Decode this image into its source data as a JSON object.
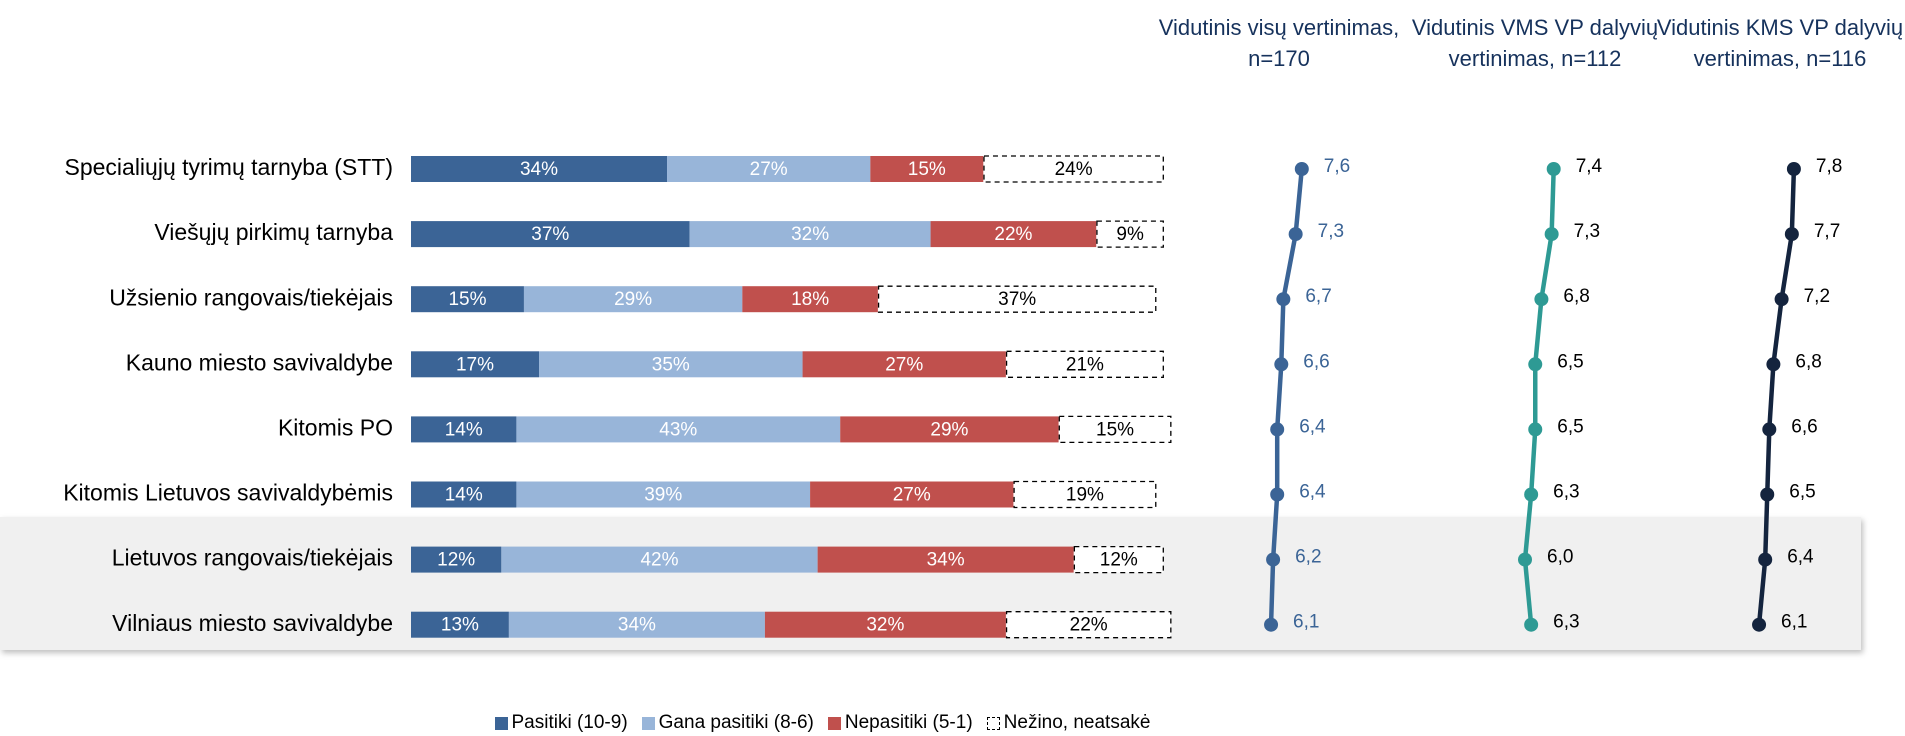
{
  "chart_data": [
    {
      "type": "bar",
      "orientation": "horizontal",
      "stacked": true,
      "xlim": [
        0,
        100
      ],
      "legend": "bottom",
      "categories": [
        "Specialiųjų tyrimų tarnyba (STT)",
        "Viešųjų pirkimų tarnyba",
        "Užsienio rangovais/tiekėjais",
        "Kauno miesto savivaldybe",
        "Kitomis PO",
        "Kitomis Lietuvos savivaldybėmis",
        "Lietuvos rangovais/tiekėjais",
        "Vilniaus miesto savivaldybe"
      ],
      "series": [
        {
          "name": "Pasitiki (10-9)",
          "color": "#3b6496",
          "values": [
            34,
            37,
            15,
            17,
            14,
            14,
            12,
            13
          ],
          "value_labels": [
            "34%",
            "37%",
            "15%",
            "17%",
            "14%",
            "14%",
            "12%",
            "13%"
          ]
        },
        {
          "name": "Gana pasitiki (8-6)",
          "color": "#98b5d9",
          "values": [
            27,
            32,
            29,
            35,
            43,
            39,
            42,
            34
          ],
          "value_labels": [
            "27%",
            "32%",
            "29%",
            "35%",
            "43%",
            "39%",
            "42%",
            "34%"
          ]
        },
        {
          "name": "Nepasitiki (5-1)",
          "color": "#c0504d",
          "values": [
            15,
            22,
            18,
            27,
            29,
            27,
            34,
            32
          ],
          "value_labels": [
            "15%",
            "22%",
            "18%",
            "27%",
            "29%",
            "27%",
            "34%",
            "32%"
          ]
        },
        {
          "name": "Nežino, neatsakė",
          "color": "#ffffff",
          "border": "dashed",
          "values": [
            24,
            9,
            37,
            21,
            15,
            19,
            12,
            22
          ],
          "value_labels": [
            "24%",
            "9%",
            "37%",
            "21%",
            "15%",
            "19%",
            "12%",
            "22%"
          ]
        }
      ]
    },
    {
      "type": "line",
      "title": "Vidutinis visų vertinimas, n=170",
      "color": "#3b6496",
      "xlim": [
        0,
        10
      ],
      "values": [
        7.6,
        7.3,
        6.7,
        6.6,
        6.4,
        6.4,
        6.2,
        6.1
      ],
      "value_labels": [
        "7,6",
        "7,3",
        "6,7",
        "6,6",
        "6,4",
        "6,4",
        "6,2",
        "6,1"
      ]
    },
    {
      "type": "line",
      "title": "Vidutinis VMS VP dalyvių vertinimas, n=112",
      "color": "#2e9a94",
      "xlim": [
        0,
        10
      ],
      "values": [
        7.4,
        7.3,
        6.8,
        6.5,
        6.5,
        6.3,
        6.0,
        6.3
      ],
      "value_labels": [
        "7,4",
        "7,3",
        "6,8",
        "6,5",
        "6,5",
        "6,3",
        "6,0",
        "6,3"
      ]
    },
    {
      "type": "line",
      "title": "Vidutinis KMS VP dalyvių vertinimas, n=116",
      "color": "#14243e",
      "xlim": [
        0,
        10
      ],
      "values": [
        7.8,
        7.7,
        7.2,
        6.8,
        6.6,
        6.5,
        6.4,
        6.1
      ],
      "value_labels": [
        "7,8",
        "7,7",
        "7,2",
        "6,8",
        "6,6",
        "6,5",
        "6,4",
        "6,1"
      ]
    }
  ]
}
